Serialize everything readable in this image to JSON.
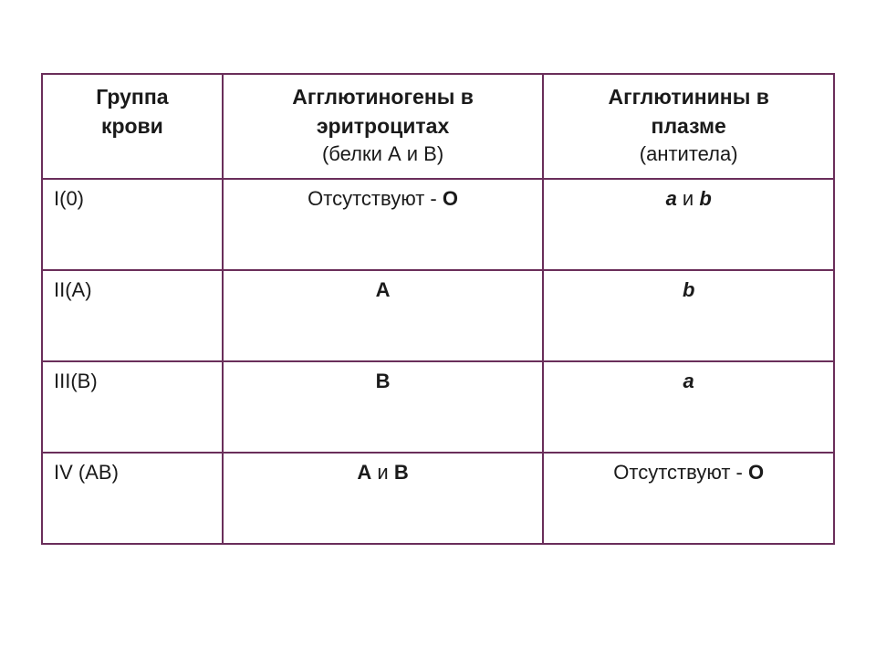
{
  "table": {
    "border_color": "#6a2e5a",
    "text_color": "#1a1a1a",
    "background_color": "#ffffff",
    "columns": [
      {
        "title_bold": "Группа крови",
        "title_normal": ""
      },
      {
        "title_bold": "Агглютиногены в эритроцитах",
        "title_normal": "(белки А и В)"
      },
      {
        "title_bold": "Агглютинины в плазме",
        "title_normal": "(антитела)"
      }
    ],
    "col1_bold_line1": "Группа",
    "col1_bold_line2": "крови",
    "col2_bold_line1": "Агглютиногены в",
    "col2_bold_line2": "эритроцитах",
    "col2_normal": "(белки А и В)",
    "col3_bold_line1": "Агглютинины в",
    "col3_bold_line2": "плазме",
    "col3_normal": "(антитела)",
    "rows": [
      {
        "group": "I(0)",
        "agglutinogens_text": "Отсутствуют  - ",
        "agglutinogens_bold": "О",
        "agglutinins_a": "а",
        "agglutinins_sep": " и ",
        "agglutinins_b": "b"
      },
      {
        "group": "II(А)",
        "agglutinogens_bold": "А",
        "agglutinins_b": "b"
      },
      {
        "group": "III(В)",
        "agglutinogens_bold": "В",
        "agglutinins_a": "а"
      },
      {
        "group": "IV (АВ)",
        "agglutinogens_a": "А",
        "agglutinogens_sep": " и ",
        "agglutinogens_b": "В",
        "agglutinins_text": "Отсутствуют - ",
        "agglutinins_bold": "О"
      }
    ]
  }
}
